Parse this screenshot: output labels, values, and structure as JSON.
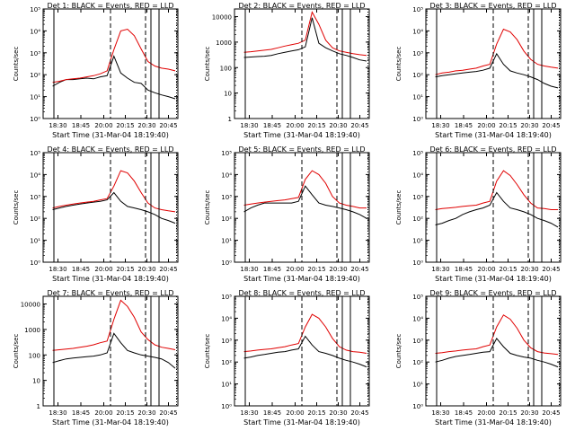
{
  "chart_data": [
    {
      "type": "line",
      "title": "Det 1: BLACK = Events, RED = LLD",
      "ylabel": "Counts/sec",
      "xlabel": "Start Time (31-Mar-04 18:19:40)",
      "x_ticks": [
        "18:30",
        "18:45",
        "20:00",
        "20:15",
        "20:30",
        "20:45"
      ],
      "y_scale": "log",
      "ylim": [
        1,
        100000
      ],
      "y_tick_labels": [
        "10⁰",
        "10¹",
        "10²",
        "10³",
        "10⁴",
        "10⁵"
      ],
      "series": [
        {
          "color": "#000000",
          "values": [
            0,
            30,
            45,
            60,
            60,
            65,
            70,
            65,
            80,
            90,
            700,
            120,
            70,
            45,
            40,
            20,
            15,
            12,
            10,
            8
          ]
        },
        {
          "color": "#e00000",
          "values": [
            0,
            45,
            50,
            60,
            65,
            70,
            80,
            90,
            110,
            150,
            1400,
            10000,
            12000,
            6000,
            1500,
            400,
            250,
            200,
            180,
            150
          ]
        }
      ]
    },
    {
      "type": "line",
      "title": "Det 2: BLACK = Events, RED = LLD",
      "ylabel": "Counts/sec",
      "xlabel": "Start Time (31-Mar-04 18:19:40)",
      "x_ticks": [
        "18:30",
        "18:45",
        "20:00",
        "20:15",
        "20:30",
        "20:45"
      ],
      "y_scale": "log",
      "ylim": [
        1,
        20000
      ],
      "y_tick_labels": [
        "1",
        "10",
        "100",
        "1000",
        "10000"
      ],
      "series": [
        {
          "color": "#000000",
          "values": [
            0,
            250,
            260,
            270,
            280,
            300,
            350,
            400,
            450,
            500,
            650,
            9000,
            900,
            600,
            450,
            350,
            300,
            250,
            200,
            180
          ]
        },
        {
          "color": "#e00000",
          "values": [
            0,
            400,
            420,
            450,
            480,
            520,
            600,
            700,
            800,
            900,
            1200,
            15000,
            5000,
            1200,
            600,
            450,
            400,
            350,
            320,
            300
          ]
        }
      ]
    },
    {
      "type": "line",
      "title": "Det 3: BLACK = Events, RED = LLD",
      "ylabel": "Counts/sec",
      "xlabel": "Start Time (31-Mar-04 18:19:40)",
      "x_ticks": [
        "18:30",
        "18:45",
        "20:00",
        "20:15",
        "20:30",
        "20:45"
      ],
      "y_scale": "log",
      "ylim": [
        1,
        100000
      ],
      "y_tick_labels": [
        "10⁰",
        "10¹",
        "10²",
        "10³",
        "10⁴",
        "10⁵"
      ],
      "series": [
        {
          "color": "#000000",
          "values": [
            0,
            80,
            90,
            100,
            110,
            120,
            130,
            140,
            160,
            200,
            900,
            300,
            150,
            120,
            100,
            80,
            60,
            40,
            30,
            25
          ]
        },
        {
          "color": "#e00000",
          "values": [
            0,
            100,
            120,
            130,
            150,
            160,
            180,
            200,
            250,
            300,
            2500,
            12000,
            9000,
            4000,
            1200,
            500,
            300,
            250,
            220,
            200
          ]
        }
      ]
    },
    {
      "type": "line",
      "title": "Det 4: BLACK = Events, RED = LLD",
      "ylabel": "Counts/sec",
      "xlabel": "Start Time (31-Mar-04 18:19:40)",
      "x_ticks": [
        "18:30",
        "18:45",
        "20:00",
        "20:15",
        "20:30",
        "20:45"
      ],
      "y_scale": "log",
      "ylim": [
        1,
        100000
      ],
      "y_tick_labels": [
        "10⁰",
        "10¹",
        "10²",
        "10³",
        "10⁴",
        "10⁵"
      ],
      "series": [
        {
          "color": "#000000",
          "values": [
            0,
            250,
            300,
            350,
            400,
            450,
            500,
            550,
            600,
            700,
            1500,
            600,
            350,
            300,
            250,
            200,
            150,
            100,
            80,
            60
          ]
        },
        {
          "color": "#e00000",
          "values": [
            0,
            300,
            350,
            400,
            450,
            500,
            550,
            600,
            700,
            800,
            3000,
            15000,
            12000,
            5000,
            1500,
            500,
            300,
            250,
            220,
            200
          ]
        }
      ]
    },
    {
      "type": "line",
      "title": "Det 5: BLACK = Events, RED = LLD",
      "ylabel": "Counts/sec",
      "xlabel": "Start Time (31-Mar-04 18:19:40)",
      "x_ticks": [
        "18:30",
        "18:45",
        "20:00",
        "20:15",
        "20:30",
        "20:45"
      ],
      "y_scale": "log",
      "ylim": [
        1,
        100000
      ],
      "y_tick_labels": [
        "10⁰",
        "10¹",
        "10²",
        "10³",
        "10⁴",
        "10⁵"
      ],
      "series": [
        {
          "color": "#000000",
          "values": [
            0,
            200,
            300,
            400,
            500,
            500,
            500,
            500,
            500,
            600,
            3000,
            1200,
            500,
            400,
            350,
            300,
            250,
            200,
            150,
            100
          ]
        },
        {
          "color": "#e00000",
          "values": [
            0,
            400,
            450,
            500,
            550,
            600,
            650,
            700,
            800,
            900,
            6000,
            15000,
            10000,
            4000,
            1000,
            500,
            400,
            350,
            300,
            300
          ]
        }
      ]
    },
    {
      "type": "line",
      "title": "Det 6: BLACK = Events, RED = LLD",
      "ylabel": "Counts/sec",
      "xlabel": "Start Time (31-Mar-04 18:19:40)",
      "x_ticks": [
        "18:30",
        "18:45",
        "20:00",
        "20:15",
        "20:30",
        "20:45"
      ],
      "y_scale": "log",
      "ylim": [
        1,
        100000
      ],
      "y_tick_labels": [
        "10⁰",
        "10¹",
        "10²",
        "10³",
        "10⁴",
        "10⁵"
      ],
      "series": [
        {
          "color": "#000000",
          "values": [
            0,
            50,
            60,
            80,
            100,
            150,
            200,
            250,
            300,
            400,
            1500,
            600,
            300,
            250,
            200,
            150,
            100,
            80,
            60,
            40
          ]
        },
        {
          "color": "#e00000",
          "values": [
            0,
            250,
            280,
            300,
            320,
            350,
            380,
            400,
            500,
            600,
            5000,
            15000,
            9000,
            3500,
            1200,
            500,
            300,
            280,
            250,
            250
          ]
        }
      ]
    },
    {
      "type": "line",
      "title": "Det 7: BLACK = Events, RED = LLD",
      "ylabel": "Counts/sec",
      "xlabel": "Start Time (31-Mar-04 18:19:40)",
      "x_ticks": [
        "18:30",
        "18:45",
        "20:00",
        "20:15",
        "20:30",
        "20:45"
      ],
      "y_scale": "log",
      "ylim": [
        1,
        20000
      ],
      "y_tick_labels": [
        "1",
        "10",
        "100",
        "1000",
        "10000"
      ],
      "series": [
        {
          "color": "#000000",
          "values": [
            0,
            50,
            60,
            70,
            75,
            80,
            85,
            90,
            100,
            120,
            700,
            300,
            150,
            120,
            100,
            90,
            80,
            70,
            50,
            30
          ]
        },
        {
          "color": "#e00000",
          "values": [
            0,
            150,
            160,
            170,
            180,
            200,
            220,
            250,
            300,
            350,
            2500,
            14000,
            8000,
            3000,
            800,
            400,
            250,
            200,
            180,
            160
          ]
        }
      ]
    },
    {
      "type": "line",
      "title": "Det 8: BLACK = Events, RED = LLD",
      "ylabel": "Counts/sec",
      "xlabel": "Start Time (31-Mar-04 18:19:40)",
      "x_ticks": [
        "18:30",
        "18:45",
        "20:00",
        "20:15",
        "20:30",
        "20:45"
      ],
      "y_scale": "log",
      "ylim": [
        1,
        100000
      ],
      "y_tick_labels": [
        "10⁰",
        "10¹",
        "10²",
        "10³",
        "10⁴",
        "10⁵"
      ],
      "series": [
        {
          "color": "#000000",
          "values": [
            0,
            150,
            170,
            200,
            220,
            250,
            280,
            300,
            350,
            400,
            1500,
            600,
            300,
            250,
            200,
            150,
            120,
            100,
            80,
            60
          ]
        },
        {
          "color": "#e00000",
          "values": [
            0,
            300,
            320,
            350,
            380,
            400,
            450,
            500,
            600,
            700,
            4000,
            15000,
            10000,
            4000,
            1200,
            500,
            350,
            300,
            280,
            250
          ]
        }
      ]
    },
    {
      "type": "line",
      "title": "Det 9: BLACK = Events, RED = LLD",
      "ylabel": "Counts/sec",
      "xlabel": "Start Time (31-Mar-04 18:19:40)",
      "x_ticks": [
        "18:30",
        "18:45",
        "20:00",
        "20:15",
        "20:30",
        "20:45"
      ],
      "y_scale": "log",
      "ylim": [
        1,
        100000
      ],
      "y_tick_labels": [
        "10⁰",
        "10¹",
        "10²",
        "10³",
        "10⁴",
        "10⁵"
      ],
      "series": [
        {
          "color": "#000000",
          "values": [
            0,
            100,
            120,
            150,
            180,
            200,
            220,
            250,
            280,
            300,
            1200,
            500,
            250,
            200,
            170,
            150,
            120,
            100,
            80,
            60
          ]
        },
        {
          "color": "#e00000",
          "values": [
            0,
            250,
            270,
            300,
            320,
            350,
            380,
            400,
            500,
            600,
            4000,
            14000,
            9000,
            3500,
            1000,
            450,
            300,
            260,
            240,
            220
          ]
        }
      ]
    }
  ]
}
